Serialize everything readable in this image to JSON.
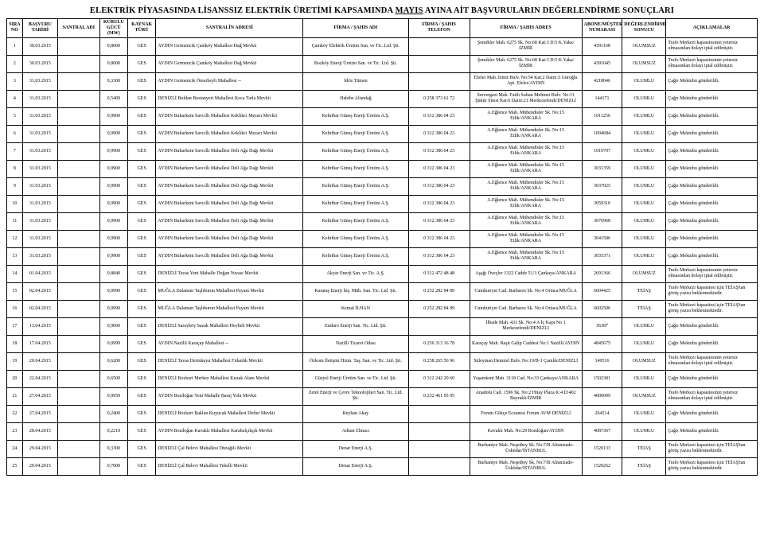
{
  "title_parts": {
    "pre": "ELEKTRİK PİYASASINDA LİSANSSIZ ELEKTRİK ÜRETİMİ KAPSAMINDA ",
    "month": "MAYIS",
    "post": " AYINA AİT BAŞVURULARIN DEĞERLENDİRME SONUÇLARI"
  },
  "headers": {
    "sira": "SIRA NO",
    "tarih": "BAŞVURU TARİHİ",
    "santral": "SANTRAL ADI",
    "guc": "KURULU GÜCÜ (MW)",
    "tur": "KAYNAK TÜRÜ",
    "adres": "SANTRALİN ADRESİ",
    "firma": "FİRMA / ŞAHIS ADI",
    "tel": "FİRMA / ŞAHIS TELEFON",
    "fadres": "FİRMA / ŞAHIS ADRES",
    "abone": "ABONE/MÜŞTERİ NUMARASI",
    "sonuc": "DEĞERLENDİRME SONUCU",
    "acik": "AÇIKLAMALAR"
  },
  "rows": [
    {
      "sira": "1",
      "tarih": "30.03.2015",
      "santral": "",
      "guc": "0,8000",
      "tur": "GES",
      "adres": "AYDIN  Germencik  Çamköy Mahallesi  Dağ Mevkii",
      "firma": "Çamköy Elektrik Üretim San. ve Tic. Ltd. Şti.",
      "tel": "",
      "fadres": "Şemikler Mah. 6275 Sk. No:68 Kat:3 D:5 K.Yaka/İZMİR",
      "abone": "4391168",
      "sonuc": "OLUMSUZ",
      "acik": "Trafo Merkezi kapasitesinin yetersiz olmasından dolayı iptal edilmiştir."
    },
    {
      "sira": "2",
      "tarih": "30.03.2015",
      "santral": "",
      "guc": "0,8000",
      "tur": "GES",
      "adres": "AYDIN  Germencik  Çamköy Mahallesi  Dağ Mevkii",
      "firma": "Bozköy Enerji Üretim San. ve Tic. Ltd. Şti.",
      "tel": "",
      "fadres": "Şemikler Mah. 6275 Sk. No:68 Kat:3 D:5 K.Yaka/İZMİR",
      "abone": "4391045",
      "sonuc": "OLUMSUZ",
      "acik": "Trafo Merkezi kapasitesinin yetersiz olmasından dolayı iptal edilmiştir."
    },
    {
      "sira": "3",
      "tarih": "31.03.2015",
      "santral": "",
      "guc": "0,3300",
      "tur": "GES",
      "adres": "AYDIN  Germencik  Ömerbeyli Mahallesi  --",
      "firma": "İdris Tümen",
      "tel": "",
      "fadres": "Efeler Mah. İzmir Bulv. No:54 Kat:2 Daire:3 Güroğlu Apt. Efeler/AYDIN",
      "abone": "4218046",
      "sonuc": "OLUMLU",
      "acik": "Çağrı Mektubu gönderildi."
    },
    {
      "sira": "4",
      "tarih": "31.03.2015",
      "santral": "",
      "guc": "0,5400",
      "tur": "GES",
      "adres": "DENİZLİ  Buldan  Bostanyeri Mahallesi  Koca Tarla Mevkii",
      "firma": "Habibe Altındağ",
      "tel": "0 258 373 61 72",
      "fadres": "Servergazi Mah. Fatih Sultan Mehmet Bulv. No:11 Şükür Sitesi Kat:6 Daire:21 Merkezefendi/DENİZLİ",
      "abone": "144171",
      "sonuc": "OLUMLU",
      "acik": "Çağrı Mektubu gönderildi."
    },
    {
      "sira": "5",
      "tarih": "31.03.2015",
      "santral": "",
      "guc": "0,9900",
      "tur": "GES",
      "adres": "AYDIN  Buharkent  Savcıllı Mahallesi  Keklikci Mezarı Mevkii",
      "firma": "Kehribar Güneş Enerji Üretim A.Ş.",
      "tel": "0 312 386 04 23",
      "fadres": "A.Eğlence Mah. Mühendisler Sk. No:15 Etlik/ANKARA",
      "abone": "1011256",
      "sonuc": "OLUMLU",
      "acik": "Çağrı Mektubu gönderildi."
    },
    {
      "sira": "6",
      "tarih": "31.03.2015",
      "santral": "",
      "guc": "0,9900",
      "tur": "GES",
      "adres": "AYDIN  Buharkent  Savcıllı Mahallesi  Keklikci Mezarı Mevkii",
      "firma": "Kehribar Güneş Enerji Üretim A.Ş.",
      "tel": "0 312 386 04 23",
      "fadres": "A.Eğlence Mah. Mühendisler Sk. No:15 Etlik/ANKARA",
      "abone": "1004684",
      "sonuc": "OLUMLU",
      "acik": "Çağrı Mektubu gönderildi."
    },
    {
      "sira": "7",
      "tarih": "31.03.2015",
      "santral": "",
      "guc": "0,9900",
      "tur": "GES",
      "adres": "AYDIN  Buharkent  Savcıllı Mahallesi  Deli Ağa Dağı Mevkii",
      "firma": "Kehribar Güneş Enerji Üretim A.Ş.",
      "tel": "0 312 386 04 23",
      "fadres": "A.Eğlence Mah. Mühendisler Sk. No:15 Etlik/ANKARA",
      "abone": "1010797",
      "sonuc": "OLUMLU",
      "acik": "Çağrı Mektubu gönderildi."
    },
    {
      "sira": "8",
      "tarih": "31.03.2015",
      "santral": "",
      "guc": "0,9900",
      "tur": "GES",
      "adres": "AYDIN  Buharkent  Savcıllı Mahallesi  Deli Ağa Dağı Mevkii",
      "firma": "Kehribar Güneş Enerji Üretim A.Ş.",
      "tel": "0 312 386 04 23",
      "fadres": "A.Eğlence Mah. Mühendisler Sk. No:15 Etlik/ANKARA",
      "abone": "3031359",
      "sonuc": "OLUMLU",
      "acik": "Çağrı Mektubu gönderildi."
    },
    {
      "sira": "9",
      "tarih": "31.03.2015",
      "santral": "",
      "guc": "0,9900",
      "tur": "GES",
      "adres": "AYDIN  Buharkent  Savcıllı Mahallesi  Deli Ağa Dağı Mevkii",
      "firma": "Kehribar Güneş Enerji Üretim A.Ş.",
      "tel": "0 312 386 04 23",
      "fadres": "A.Eğlence Mah. Mühendisler Sk. No:15 Etlik/ANKARA",
      "abone": "3037025",
      "sonuc": "OLUMLU",
      "acik": "Çağrı Mektubu gönderildi."
    },
    {
      "sira": "10",
      "tarih": "31.03.2015",
      "santral": "",
      "guc": "0,9900",
      "tur": "GES",
      "adres": "AYDIN  Buharkent  Savcıllı Mahallesi  Deli Ağa Dağı Mevkii",
      "firma": "Kehribar Güneş Enerji Üretim A.Ş.",
      "tel": "0 312 386 04 23",
      "fadres": "A.Eğlence Mah. Mühendisler Sk. No:15 Etlik/ANKARA",
      "abone": "3059310",
      "sonuc": "OLUMLU",
      "acik": "Çağrı Mektubu gönderildi."
    },
    {
      "sira": "11",
      "tarih": "31.03.2015",
      "santral": "",
      "guc": "0,9900",
      "tur": "GES",
      "adres": "AYDIN  Buharkent  Savcıllı Mahallesi  Deli Ağa Dağı Mevkii",
      "firma": "Kehribar Güneş Enerji Üretim A.Ş.",
      "tel": "0 312 386 04 23",
      "fadres": "A.Eğlence Mah. Mühendisler Sk. No:15 Etlik/ANKARA",
      "abone": "3076968",
      "sonuc": "OLUMLU",
      "acik": "Çağrı Mektubu gönderildi."
    },
    {
      "sira": "12",
      "tarih": "31.03.2015",
      "santral": "",
      "guc": "0,9900",
      "tur": "GES",
      "adres": "AYDIN  Buharkent  Savcıllı Mahallesi  Deli Ağa Dağı Mevkii",
      "firma": "Kehribar Güneş Enerji Üretim A.Ş.",
      "tel": "0 312 386 04 23",
      "fadres": "A.Eğlence Mah. Mühendisler Sk. No:15 Etlik/ANKARA",
      "abone": "3041586",
      "sonuc": "OLUMLU",
      "acik": "Çağrı Mektubu gönderildi."
    },
    {
      "sira": "13",
      "tarih": "31.03.2015",
      "santral": "",
      "guc": "0,9900",
      "tur": "GES",
      "adres": "AYDIN  Buharkent  Savcıllı Mahallesi  Deli Ağa Dağı Mevkii",
      "firma": "Kehribar Güneş Enerji Üretim A.Ş.",
      "tel": "0 312 386 04 23",
      "fadres": "A.Eğlence Mah. Mühendisler Sk. No:15 Etlik/ANKARA",
      "abone": "3035371",
      "sonuc": "OLUMLU",
      "acik": "Çağrı Mektubu gönderildi."
    },
    {
      "sira": "14",
      "tarih": "01.04.2015",
      "santral": "",
      "guc": "0,8840",
      "tur": "GES",
      "adres": "DENİZLİ  Tavas  Yeni Mahalle  Doğan Yuvası Mevkii",
      "firma": "Akyar Enerji San. ve Tic. A.Ş.",
      "tel": "0 312 472 48 48",
      "fadres": "Aşağı Öveçler 1322 Cadde 51/3 Çankaya/ANKARA",
      "abone": "2691366",
      "sonuc": "OLUMSUZ",
      "acik": "Trafo Merkezi kapasitesinin yetersiz olmasından dolayı iptal edilmiştir."
    },
    {
      "sira": "15",
      "tarih": "02.04.2015",
      "santral": "",
      "guc": "0,9990",
      "tur": "GES",
      "adres": "MUĞLA  Dalaman  Taşlıburun Mahallesi  Payam Mevkii",
      "firma": "Karataş Enerji İnş. Müh. San. Tic. Ltd. Şti.",
      "tel": "0 252 282 84 89",
      "fadres": "Cumhuriyet Cad. Barbaros Sk. No:4 Ortaca/MUĞLA",
      "abone": "6604425",
      "sonuc": "TEİAŞ",
      "acik": "Trafo Merkezi kapasitesi için TEİAŞ'tan görüş yazısı beklenmektedir."
    },
    {
      "sira": "16",
      "tarih": "02.04.2015",
      "santral": "",
      "guc": "0,9990",
      "tur": "GES",
      "adres": "MUĞLA  Dalaman  Taşlıburun Mahallesi  Payam Mevkii",
      "firma": "Kemal İLHAN",
      "tel": "0 252 282 84 89",
      "fadres": "Cumhuriyet Cad. Barbaros Sk. No:4 Ortaca/MUĞLA",
      "abone": "6602506",
      "sonuc": "TEİAŞ",
      "acik": "Trafo Merkezi kapasitesi için TEİAŞ'tan görüş yazısı beklenmektedir."
    },
    {
      "sira": "17",
      "tarih": "13.04.2015",
      "santral": "",
      "guc": "0,9000",
      "tur": "GES",
      "adres": "DENİZLİ  Sarayköy  Sazak Mahallesi  Heybeli Mevkii",
      "firma": "Enduro Enerji San. Tic. Ltd. Şti.",
      "tel": "",
      "fadres": "İlbade Mah. 431 Sk. No:4 A İç Kapı No 1 Merkezefendi/DENİZLİ",
      "abone": "36387",
      "sonuc": "OLUMLU",
      "acik": "Çağrı Mektubu gönderildi."
    },
    {
      "sira": "18",
      "tarih": "17.04.2015",
      "santral": "",
      "guc": "0,0999",
      "tur": "GES",
      "adres": "AYDIN  Nazilli  Karaçay Mahallesi  --",
      "firma": "Nazilli Ticaret Odası",
      "tel": "0 256 313 16 78",
      "fadres": "Karaçay Mah. Reşit Galip Caddesi No:1 Nazilli/AYDIN",
      "abone": "4845675",
      "sonuc": "OLUMLU",
      "acik": "Çağrı Mektubu gönderildi."
    },
    {
      "sira": "19",
      "tarih": "20.04.2015",
      "santral": "",
      "guc": "0,6200",
      "tur": "GES",
      "adres": "DENİZLİ  Tavas  Derinkuyu Mahallesi  Fidanlık Mevkii",
      "firma": "Özkom İletişim Hizm. Taş. San. ve Tic. Ltd. Şti.",
      "tel": "0 258 265 56 96",
      "fadres": "Süleyman Demirel Bulv. No:19/B-1 Çamlık/DENİZLİ",
      "abone": "149516",
      "sonuc": "OLUMSUZ",
      "acik": "Trafo Merkezi kapasitesinin yetersiz olmasından dolayı iptal edilmiştir."
    },
    {
      "sira": "20",
      "tarih": "22.04.2015",
      "santral": "",
      "guc": "0,6500",
      "tur": "GES",
      "adres": "DENİZLİ  Bozkurt  Merkez Mahallesi  Kısrak Alanı Mevkii",
      "firma": "Güzyel Enerji Üretim San. ve Tic. Ltd. Şti.",
      "tel": "0 312 242 20 60",
      "fadres": "Yaşamkent Mah. 3118 Cad. No:33 Çankaya/ANKARA",
      "abone": "1502381",
      "sonuc": "OLUMLU",
      "acik": "Çağrı Mektubu gönderildi."
    },
    {
      "sira": "21",
      "tarih": "27.04.2015",
      "santral": "",
      "guc": "0,9950",
      "tur": "GES",
      "adres": "AYDIN  Bozdoğan  Yeni Mahalle  Baraj Yolu Mevkii",
      "firma": "Zenit Enerji ve Çevre Teknolojileri San. Tic. Ltd. Şti.",
      "tel": "0 232 461 95 95",
      "fadres": "Anadolu Cad. 1596 Sk. No:2 Hitay Plaza K:4 D:402 Bayraklı/İZMİR",
      "abone": "4000099",
      "sonuc": "OLUMSUZ",
      "acik": "Trafo Merkezi kapasitesinin yetersiz olmasından dolayı iptal edilmiştir."
    },
    {
      "sira": "22",
      "tarih": "27.04.2015",
      "santral": "",
      "guc": "0,2400",
      "tur": "GES",
      "adres": "DENİZLİ  Bozkurt  Baklan Kuyucak Mahallesi  Defter Mevkii",
      "firma": "Reyhan Akay",
      "tel": "",
      "fadres": "Forum Gökçe Eczanesi Forum AVM DENİZLİ",
      "abone": "264514",
      "sonuc": "OLUMLU",
      "acik": "Çağrı Mektubu gönderildi."
    },
    {
      "sira": "23",
      "tarih": "28.04.2015",
      "santral": "",
      "guc": "0,2210",
      "tur": "GES",
      "adres": "AYDIN  Bozdoğan  Kavaklı Mahallesi  Karabalçıkçık Mevkii",
      "firma": "Adnan Elmacı",
      "tel": "",
      "fadres": "Kavaklı Mah. No:29 Bozdoğan/AYDIN",
      "abone": "4087367",
      "sonuc": "OLUMLU",
      "acik": "Çağrı Mektubu gönderildi."
    },
    {
      "sira": "24",
      "tarih": "29.04.2015",
      "santral": "",
      "guc": "0,3300",
      "tur": "GES",
      "adres": "DENİZLİ  Çal  Belevi Mahallesi  Düzağılı Mevkii",
      "firma": "Denar Enerji A.Ş.",
      "tel": "",
      "fadres": "Burhaniye Mah. Neşetbey Sk. No:7/B Altunizade-Üsküdar/İSTANBUL",
      "abone": "1520133",
      "sonuc": "TEİAŞ",
      "acik": "Trafo Merkezi kapasitesi için TEİAŞ'tan görüş yazısı beklenmektedir."
    },
    {
      "sira": "25",
      "tarih": "29.04.2015",
      "santral": "",
      "guc": "0,7000",
      "tur": "GES",
      "adres": "DENİZLİ  Çal  Belevi Mahallesi  Tekelli Mevkii",
      "firma": "Denar Enerji A.Ş.",
      "tel": "",
      "fadres": "Burhaniye Mah. Neşetbey Sk. No:7/B Altunizade-Üsküdar/İSTANBUL",
      "abone": "1520262",
      "sonuc": "TEİAŞ",
      "acik": "Trafo Merkezi kapasitesi için TEİAŞ'tan görüş yazısı beklenmektedir."
    }
  ]
}
